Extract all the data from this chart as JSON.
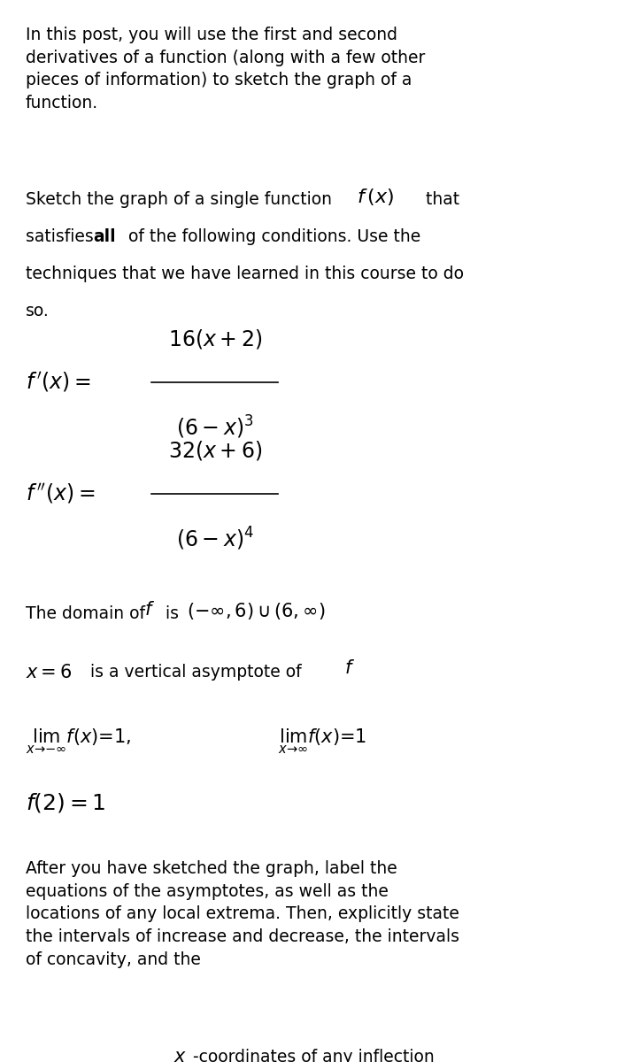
{
  "background_color": "#ffffff",
  "text_color": "#000000",
  "figsize": [
    7.14,
    12.0
  ],
  "dpi": 100,
  "paragraph1": "In this post, you will use the first and second\nderivatives of a function (along with a few other\npieces of information) to sketch the graph of a\nfunction.",
  "paragraph2_plain": "Sketch the graph of a single function ",
  "paragraph2_math": "f\\,(x)",
  "paragraph2_end": " that\nsatisfies ",
  "paragraph2_bold": "all",
  "paragraph2_rest": " of the following conditions. Use the\ntechniques that we have learned in this course to do\nso.",
  "fprime_left": "f\\,'(x) = ",
  "fprime_num": "16(x+2)",
  "fprime_den": "(6-x)^3",
  "fdprime_left": "f\\,''(x) = ",
  "fdprime_num": "32(x+6)",
  "fdprime_den": "(6-x)^4",
  "domain_plain": "The domain of ",
  "domain_math_f": "f",
  "domain_plain2": " is ",
  "domain_math2": "(-\\infty, 6) \\cup (6, \\infty)",
  "asymptote_math": "x = 6",
  "asymptote_plain": " is a vertical asymptote of ",
  "asymptote_math2": "f",
  "lim1_math": "\\lim_{x \\to -\\infty} f(x) = 1,",
  "lim2_math": "\\lim_{x \\to \\infty} f(x) = 1",
  "point_math": "f(2) = 1",
  "paragraph_last": "After you have sketched the graph, label the\nequations of the asymptotes, as well as the\nlocations of any local extrema. Then, explicitly state\nthe intervals of increase and decrease, the intervals\nof concavity, and the ",
  "paragraph_last_x": "x",
  "paragraph_last_end": "-coordinates of any inflection\npoints."
}
